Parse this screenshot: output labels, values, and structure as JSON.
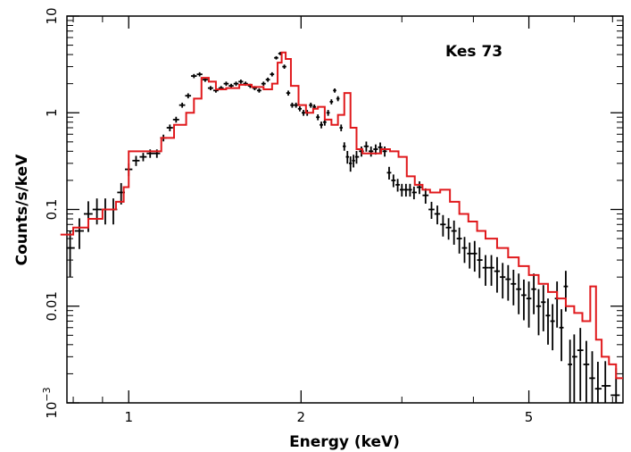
{
  "chart_data": {
    "type": "line",
    "title": "",
    "annotation": "Kes 73",
    "xlabel": "Energy (keV)",
    "ylabel": "Counts/s/keV",
    "xscale": "log",
    "yscale": "log",
    "xlim": [
      0.78,
      7.3
    ],
    "ylim": [
      0.001,
      10
    ],
    "xticks": [
      {
        "value": 1,
        "label": "1"
      },
      {
        "value": 2,
        "label": "2"
      },
      {
        "value": 5,
        "label": "5"
      }
    ],
    "yticks": [
      {
        "value": 0.001,
        "label": "10",
        "sup": "−3"
      },
      {
        "value": 0.01,
        "label": "0.01"
      },
      {
        "value": 0.1,
        "label": "0.1"
      },
      {
        "value": 1,
        "label": "1"
      },
      {
        "value": 10,
        "label": "10"
      }
    ],
    "colors": {
      "data": "#000000",
      "model": "#e0191c"
    },
    "series": [
      {
        "kind": "data-points-with-errors",
        "x": [
          0.79,
          0.82,
          0.85,
          0.88,
          0.91,
          0.94,
          0.97,
          1.0,
          1.03,
          1.06,
          1.09,
          1.12,
          1.15,
          1.18,
          1.21,
          1.24,
          1.27,
          1.3,
          1.33,
          1.36,
          1.39,
          1.42,
          1.45,
          1.48,
          1.51,
          1.54,
          1.57,
          1.6,
          1.63,
          1.66,
          1.69,
          1.72,
          1.75,
          1.78,
          1.81,
          1.84,
          1.87,
          1.9,
          1.93,
          1.96,
          1.99,
          2.02,
          2.05,
          2.08,
          2.11,
          2.14,
          2.17,
          2.2,
          2.23,
          2.26,
          2.29,
          2.32,
          2.35,
          2.38,
          2.41,
          2.44,
          2.47,
          2.5,
          2.55,
          2.6,
          2.65,
          2.7,
          2.75,
          2.8,
          2.85,
          2.9,
          2.95,
          3.0,
          3.05,
          3.1,
          3.15,
          3.22,
          3.3,
          3.38,
          3.46,
          3.54,
          3.62,
          3.7,
          3.78,
          3.86,
          3.94,
          4.02,
          4.1,
          4.2,
          4.3,
          4.4,
          4.5,
          4.6,
          4.7,
          4.8,
          4.9,
          5.0,
          5.1,
          5.2,
          5.3,
          5.4,
          5.5,
          5.6,
          5.7,
          5.8,
          5.9,
          6.0,
          6.15,
          6.3,
          6.45,
          6.6,
          6.8,
          7.1
        ],
        "y": [
          0.04,
          0.06,
          0.09,
          0.1,
          0.1,
          0.1,
          0.15,
          0.26,
          0.32,
          0.35,
          0.38,
          0.38,
          0.55,
          0.7,
          0.85,
          1.2,
          1.5,
          2.4,
          2.5,
          2.2,
          1.8,
          1.7,
          1.8,
          2.0,
          1.9,
          2.0,
          2.1,
          2.0,
          1.9,
          1.8,
          1.7,
          2.0,
          2.2,
          2.5,
          3.7,
          4.1,
          3.0,
          1.6,
          1.2,
          1.2,
          1.1,
          1.0,
          1.0,
          1.2,
          1.15,
          0.9,
          0.75,
          0.8,
          1.0,
          1.3,
          1.7,
          1.4,
          0.7,
          0.45,
          0.35,
          0.3,
          0.32,
          0.35,
          0.4,
          0.45,
          0.4,
          0.42,
          0.44,
          0.4,
          0.24,
          0.2,
          0.18,
          0.16,
          0.16,
          0.16,
          0.15,
          0.17,
          0.14,
          0.1,
          0.09,
          0.07,
          0.065,
          0.06,
          0.05,
          0.04,
          0.035,
          0.035,
          0.03,
          0.025,
          0.025,
          0.023,
          0.02,
          0.019,
          0.017,
          0.015,
          0.013,
          0.012,
          0.015,
          0.01,
          0.011,
          0.008,
          0.007,
          0.012,
          0.006,
          0.016,
          0.0025,
          0.003,
          0.0035,
          0.0025,
          0.0018,
          0.0014,
          0.0015,
          0.0012
        ],
        "yerr_frac": [
          0.5,
          0.35,
          0.35,
          0.3,
          0.3,
          0.3,
          0.25,
          0.15,
          0.12,
          0.1,
          0.1,
          0.1,
          0.08,
          0.08,
          0.07,
          0.06,
          0.06,
          0.05,
          0.05,
          0.05,
          0.05,
          0.05,
          0.05,
          0.05,
          0.05,
          0.05,
          0.05,
          0.05,
          0.05,
          0.05,
          0.05,
          0.05,
          0.05,
          0.05,
          0.04,
          0.04,
          0.05,
          0.06,
          0.06,
          0.06,
          0.06,
          0.07,
          0.07,
          0.06,
          0.06,
          0.07,
          0.08,
          0.08,
          0.07,
          0.06,
          0.05,
          0.06,
          0.08,
          0.1,
          0.15,
          0.18,
          0.15,
          0.15,
          0.12,
          0.12,
          0.12,
          0.12,
          0.12,
          0.12,
          0.15,
          0.15,
          0.15,
          0.15,
          0.15,
          0.15,
          0.15,
          0.15,
          0.18,
          0.2,
          0.22,
          0.25,
          0.25,
          0.28,
          0.3,
          0.3,
          0.3,
          0.35,
          0.35,
          0.35,
          0.35,
          0.4,
          0.4,
          0.4,
          0.4,
          0.45,
          0.45,
          0.5,
          0.45,
          0.5,
          0.5,
          0.5,
          0.5,
          0.5,
          0.55,
          0.45,
          0.8,
          0.7,
          0.7,
          0.75,
          0.9,
          0.9,
          0.8,
          0.9
        ]
      },
      {
        "kind": "model-step",
        "x_edges": [
          0.76,
          0.8,
          0.85,
          0.9,
          0.95,
          0.98,
          1.0,
          1.08,
          1.14,
          1.2,
          1.26,
          1.3,
          1.34,
          1.38,
          1.42,
          1.48,
          1.56,
          1.64,
          1.72,
          1.78,
          1.82,
          1.85,
          1.88,
          1.92,
          1.98,
          2.04,
          2.1,
          2.14,
          2.2,
          2.26,
          2.32,
          2.38,
          2.44,
          2.5,
          2.56,
          2.66,
          2.76,
          2.86,
          2.96,
          3.06,
          3.16,
          3.26,
          3.36,
          3.5,
          3.64,
          3.78,
          3.92,
          4.06,
          4.2,
          4.4,
          4.6,
          4.8,
          5.0,
          5.2,
          5.4,
          5.6,
          5.8,
          6.0,
          6.2,
          6.4,
          6.55,
          6.7,
          6.9,
          7.1,
          7.3
        ],
        "y": [
          0.055,
          0.065,
          0.08,
          0.1,
          0.12,
          0.17,
          0.4,
          0.4,
          0.55,
          0.75,
          1.0,
          1.4,
          2.3,
          2.1,
          1.75,
          1.8,
          1.95,
          1.85,
          1.75,
          2.0,
          3.3,
          4.2,
          3.6,
          1.9,
          1.2,
          1.0,
          1.1,
          1.15,
          0.85,
          0.75,
          0.95,
          1.6,
          0.7,
          0.42,
          0.38,
          0.38,
          0.42,
          0.4,
          0.35,
          0.22,
          0.18,
          0.16,
          0.15,
          0.16,
          0.12,
          0.09,
          0.075,
          0.06,
          0.05,
          0.04,
          0.032,
          0.026,
          0.021,
          0.017,
          0.014,
          0.012,
          0.01,
          0.0085,
          0.007,
          0.016,
          0.0045,
          0.003,
          0.0025,
          0.0018
        ]
      }
    ],
    "grid": false,
    "legend": "none"
  }
}
